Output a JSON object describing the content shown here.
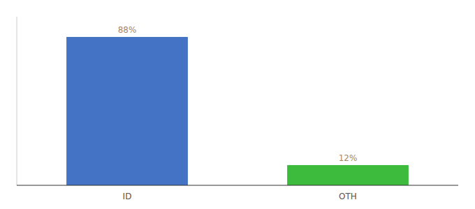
{
  "chart_data": {
    "type": "bar",
    "categories": [
      "ID",
      "OTH"
    ],
    "values": [
      88,
      12
    ],
    "value_labels": [
      "88%",
      "12%"
    ],
    "colors": [
      "#4472C4",
      "#3dbb3d"
    ],
    "ylim": [
      0,
      100
    ],
    "data_labels": true,
    "tick_labels": "x",
    "grid": false
  }
}
